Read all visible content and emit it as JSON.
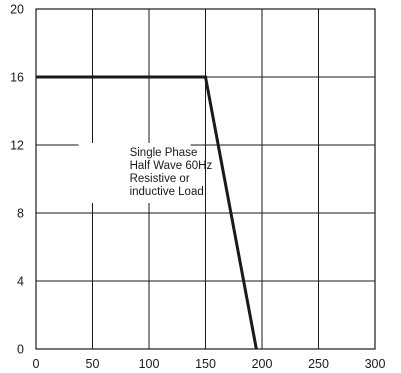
{
  "chart_data": {
    "type": "line",
    "title": "",
    "xlabel": "",
    "ylabel": "",
    "xlim": [
      0,
      300
    ],
    "ylim": [
      0,
      20
    ],
    "x_ticks": [
      0,
      50,
      100,
      150,
      200,
      250,
      300
    ],
    "y_ticks": [
      0,
      4,
      8,
      12,
      16,
      20
    ],
    "x_tick_labels": [
      "0",
      "50",
      "100",
      "150",
      "200",
      "250",
      "300"
    ],
    "y_tick_labels": [
      "0",
      "4",
      "8",
      "12",
      "16",
      "20"
    ],
    "grid": true,
    "series": [
      {
        "x": [
          0,
          150,
          195
        ],
        "y": [
          16,
          16,
          0
        ],
        "color": "#1a1a1a"
      }
    ],
    "annotation": {
      "lines": [
        "Single Phase",
        "Half Wave 60Hz",
        "Resistive or",
        "inductive Load"
      ],
      "x": 43,
      "y": 12
    }
  }
}
